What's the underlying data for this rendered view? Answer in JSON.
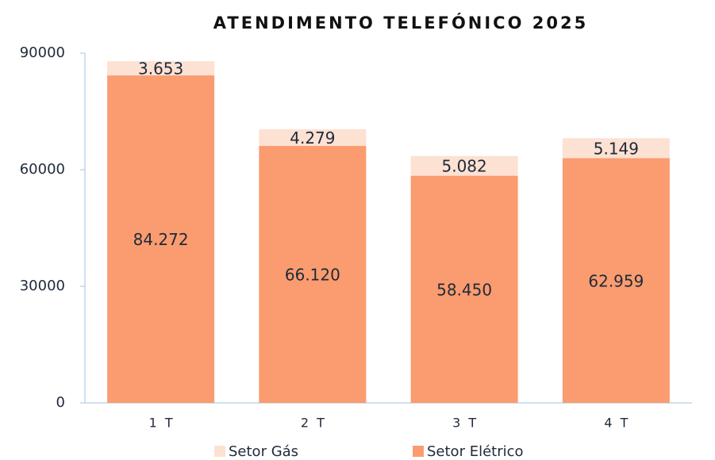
{
  "chart_data": {
    "type": "stacked_bar",
    "title": "ATENDIMENTO TELEFÓNICO 2025",
    "categories": [
      "1  T",
      "2  T",
      "3  T",
      "4  T"
    ],
    "series": [
      {
        "name": "Setor Elétrico",
        "color": "#fa9c6f",
        "values": [
          84272,
          66120,
          58450,
          62959
        ],
        "value_labels": [
          "84.272",
          "66.120",
          "58.450",
          "62.959"
        ]
      },
      {
        "name": "Setor Gás",
        "color": "#fde1d3",
        "values": [
          3653,
          4279,
          5082,
          5149
        ],
        "value_labels": [
          "3.653",
          "4.279",
          "5.082",
          "5.149"
        ]
      }
    ],
    "ylim": [
      0,
      90000
    ],
    "yticks": [
      0,
      30000,
      60000,
      90000
    ],
    "legend": "bottom"
  }
}
